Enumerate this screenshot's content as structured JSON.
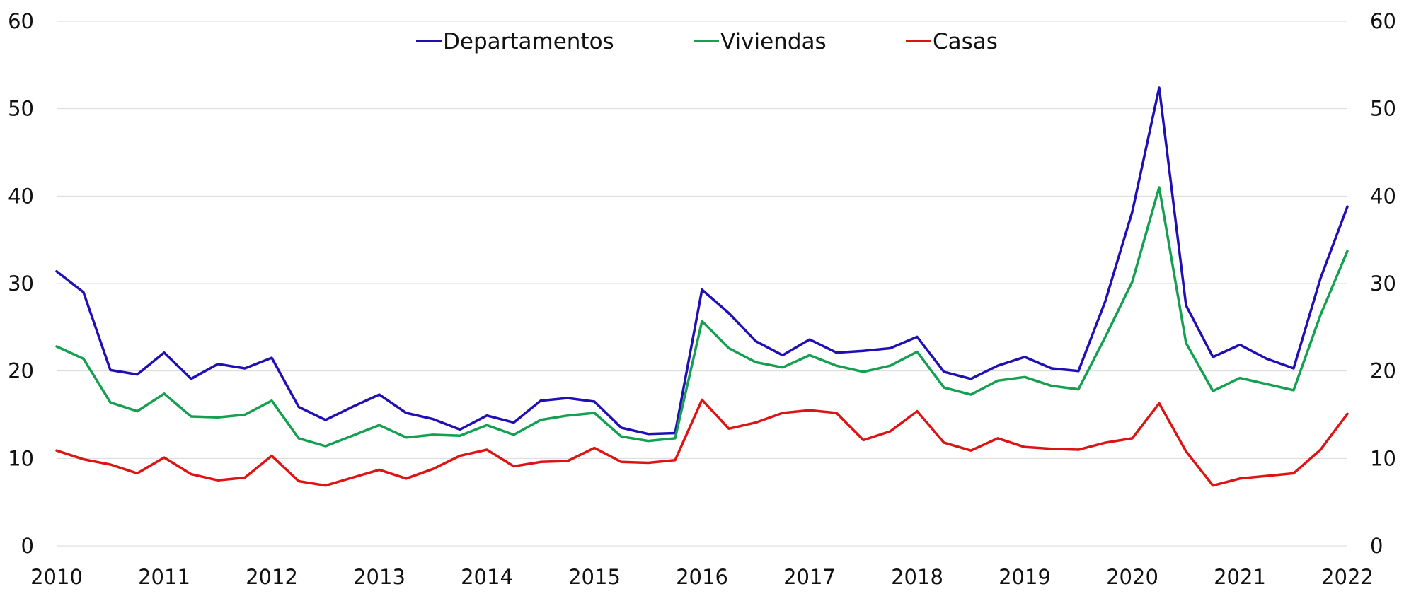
{
  "chart_data": {
    "type": "line",
    "title": "",
    "xlabel": "",
    "ylabel": "",
    "ylim": [
      0,
      60
    ],
    "xlim": [
      2010,
      2022
    ],
    "grid": true,
    "legend_position": "top-center",
    "y_ticks": [
      "0",
      "10",
      "20",
      "30",
      "40",
      "50",
      "60"
    ],
    "x_ticks": [
      "2010",
      "2011",
      "2012",
      "2013",
      "2014",
      "2015",
      "2016",
      "2017",
      "2018",
      "2019",
      "2020",
      "2021",
      "2022"
    ],
    "x": [
      2010,
      2010.25,
      2010.5,
      2010.75,
      2011,
      2011.25,
      2011.5,
      2011.75,
      2012,
      2012.25,
      2012.5,
      2012.75,
      2013,
      2013.25,
      2013.5,
      2013.75,
      2014,
      2014.25,
      2014.5,
      2014.75,
      2015,
      2015.25,
      2015.5,
      2015.75,
      2016,
      2016.25,
      2016.5,
      2016.75,
      2017,
      2017.25,
      2017.5,
      2017.75,
      2018,
      2018.25,
      2018.5,
      2018.75,
      2019,
      2019.25,
      2019.5,
      2019.75,
      2020,
      2020.25,
      2020.5,
      2020.75,
      2021,
      2021.25,
      2021.5,
      2021.75,
      2022
    ],
    "series": [
      {
        "name": "Departamentos",
        "color": "#1f0fb4",
        "values": [
          31.4,
          29.0,
          20.1,
          19.6,
          22.1,
          19.1,
          20.8,
          20.3,
          21.5,
          15.9,
          14.4,
          15.9,
          17.3,
          15.2,
          14.5,
          13.3,
          14.9,
          14.1,
          16.6,
          16.9,
          16.5,
          13.5,
          12.8,
          12.9,
          29.3,
          26.6,
          23.4,
          21.8,
          23.6,
          22.1,
          22.3,
          22.6,
          23.9,
          19.9,
          19.1,
          20.6,
          21.6,
          20.3,
          20.0,
          28.0,
          38.2,
          52.4,
          27.5,
          21.6,
          23.0,
          21.4,
          20.3,
          30.6,
          38.8
        ]
      },
      {
        "name": "Viviendas",
        "color": "#14a050",
        "values": [
          22.8,
          21.4,
          16.4,
          15.4,
          17.4,
          14.8,
          14.7,
          15.0,
          16.6,
          12.3,
          11.4,
          12.6,
          13.8,
          12.4,
          12.7,
          12.6,
          13.8,
          12.7,
          14.4,
          14.9,
          15.2,
          12.5,
          12.0,
          12.3,
          25.7,
          22.6,
          21.0,
          20.4,
          21.8,
          20.6,
          19.9,
          20.6,
          22.2,
          18.1,
          17.3,
          18.9,
          19.3,
          18.3,
          17.9,
          23.9,
          30.2,
          41.0,
          23.2,
          17.7,
          19.2,
          18.5,
          17.8,
          26.4,
          33.7
        ]
      },
      {
        "name": "Casas",
        "color": "#dc1414",
        "values": [
          10.9,
          9.9,
          9.3,
          8.3,
          10.1,
          8.2,
          7.5,
          7.8,
          10.3,
          7.4,
          6.9,
          7.8,
          8.7,
          7.7,
          8.8,
          10.3,
          11.0,
          9.1,
          9.6,
          9.7,
          11.2,
          9.6,
          9.5,
          9.8,
          16.7,
          13.4,
          14.1,
          15.2,
          15.5,
          15.2,
          12.1,
          13.1,
          15.4,
          11.8,
          10.9,
          12.3,
          11.3,
          11.1,
          11.0,
          11.8,
          12.3,
          16.3,
          10.8,
          6.9,
          7.7,
          8.0,
          8.3,
          11.0,
          15.1
        ]
      }
    ]
  }
}
